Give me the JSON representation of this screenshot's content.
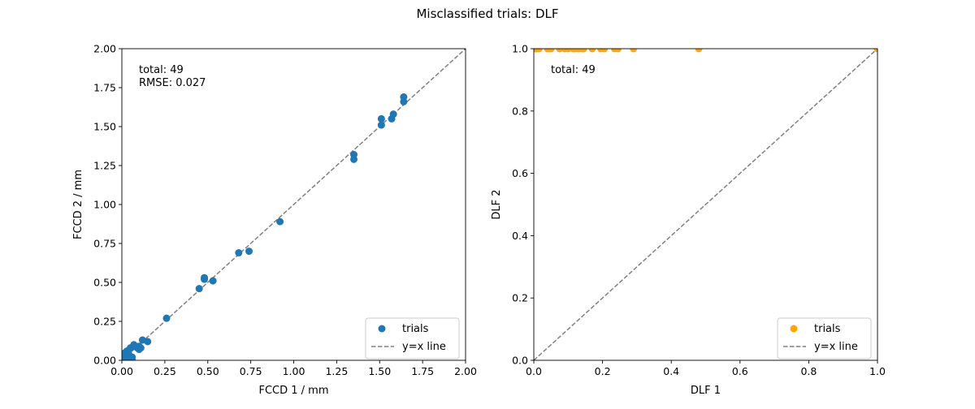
{
  "figure": {
    "title": "Misclassified trials: DLF"
  },
  "chart_data": [
    {
      "type": "scatter",
      "xlabel": "FCCD 1 / mm",
      "ylabel": "FCCD 2 / mm",
      "xlim": [
        0,
        2
      ],
      "ylim": [
        0,
        2
      ],
      "xticks": [
        0.0,
        0.25,
        0.5,
        0.75,
        1.0,
        1.25,
        1.5,
        1.75,
        2.0
      ],
      "yticks": [
        0.0,
        0.25,
        0.5,
        0.75,
        1.0,
        1.25,
        1.5,
        1.75,
        2.0
      ],
      "xtick_labels": [
        "0.00",
        "0.25",
        "0.50",
        "0.75",
        "1.00",
        "1.25",
        "1.50",
        "1.75",
        "2.00"
      ],
      "ytick_labels": [
        "0.00",
        "0.25",
        "0.50",
        "0.75",
        "1.00",
        "1.25",
        "1.50",
        "1.75",
        "2.00"
      ],
      "annotation_lines": [
        "total: 49",
        "RMSE: 0.027"
      ],
      "legend": {
        "placement": "lower-right",
        "scatter_label": "trials",
        "line_label": "y=x line"
      },
      "grid": false,
      "series": [
        {
          "name": "trials",
          "color": "#1f77b4",
          "points": [
            [
              0.0,
              0.0
            ],
            [
              0.01,
              0.02
            ],
            [
              0.02,
              0.05
            ],
            [
              0.02,
              0.0
            ],
            [
              0.03,
              0.06
            ],
            [
              0.04,
              0.02
            ],
            [
              0.04,
              0.04
            ],
            [
              0.05,
              0.08
            ],
            [
              0.05,
              0.01
            ],
            [
              0.06,
              0.02
            ],
            [
              0.06,
              0.0
            ],
            [
              0.07,
              0.09
            ],
            [
              0.07,
              0.1
            ],
            [
              0.08,
              0.09
            ],
            [
              0.09,
              0.08
            ],
            [
              0.1,
              0.09
            ],
            [
              0.1,
              0.07
            ],
            [
              0.11,
              0.08
            ],
            [
              0.12,
              0.13
            ],
            [
              0.15,
              0.12
            ],
            [
              0.26,
              0.27
            ],
            [
              0.45,
              0.46
            ],
            [
              0.48,
              0.52
            ],
            [
              0.48,
              0.53
            ],
            [
              0.53,
              0.51
            ],
            [
              0.68,
              0.69
            ],
            [
              0.74,
              0.7
            ],
            [
              0.92,
              0.89
            ],
            [
              1.35,
              1.29
            ],
            [
              1.35,
              1.32
            ],
            [
              1.51,
              1.51
            ],
            [
              1.51,
              1.55
            ],
            [
              1.57,
              1.55
            ],
            [
              1.58,
              1.58
            ],
            [
              1.64,
              1.66
            ],
            [
              1.64,
              1.69
            ]
          ]
        },
        {
          "name": "y=x line",
          "color": "#808080",
          "style": "dashed",
          "points": [
            [
              0,
              0
            ],
            [
              2,
              2
            ]
          ]
        }
      ]
    },
    {
      "type": "scatter",
      "xlabel": "DLF 1",
      "ylabel": "DLF 2",
      "xlim": [
        0,
        1
      ],
      "ylim": [
        0,
        1
      ],
      "xticks": [
        0.0,
        0.2,
        0.4,
        0.6,
        0.8,
        1.0
      ],
      "yticks": [
        0.0,
        0.2,
        0.4,
        0.6,
        0.8,
        1.0
      ],
      "xtick_labels": [
        "0.0",
        "0.2",
        "0.4",
        "0.6",
        "0.8",
        "1.0"
      ],
      "ytick_labels": [
        "0.0",
        "0.2",
        "0.4",
        "0.6",
        "0.8",
        "1.0"
      ],
      "annotation_lines": [
        "total: 49"
      ],
      "legend": {
        "placement": "lower-right",
        "scatter_label": "trials",
        "line_label": "y=x line"
      },
      "grid": false,
      "series": [
        {
          "name": "trials",
          "color": "#ffa500",
          "points": [
            [
              0.0,
              1.0
            ],
            [
              0.005,
              1.0
            ],
            [
              0.01,
              1.0
            ],
            [
              0.015,
              1.0
            ],
            [
              0.04,
              1.0
            ],
            [
              0.045,
              1.0
            ],
            [
              0.05,
              1.0
            ],
            [
              0.075,
              1.0
            ],
            [
              0.09,
              1.0
            ],
            [
              0.1,
              1.0
            ],
            [
              0.115,
              1.0
            ],
            [
              0.12,
              1.0
            ],
            [
              0.13,
              1.0
            ],
            [
              0.14,
              1.0
            ],
            [
              0.145,
              1.0
            ],
            [
              0.17,
              1.0
            ],
            [
              0.195,
              1.0
            ],
            [
              0.205,
              1.0
            ],
            [
              0.235,
              1.0
            ],
            [
              0.245,
              1.0
            ],
            [
              0.29,
              1.0
            ],
            [
              0.48,
              1.0
            ],
            [
              1.0,
              1.0
            ]
          ]
        },
        {
          "name": "y=x line",
          "color": "#808080",
          "style": "dashed",
          "points": [
            [
              0,
              0
            ],
            [
              1,
              1
            ]
          ]
        }
      ]
    }
  ]
}
